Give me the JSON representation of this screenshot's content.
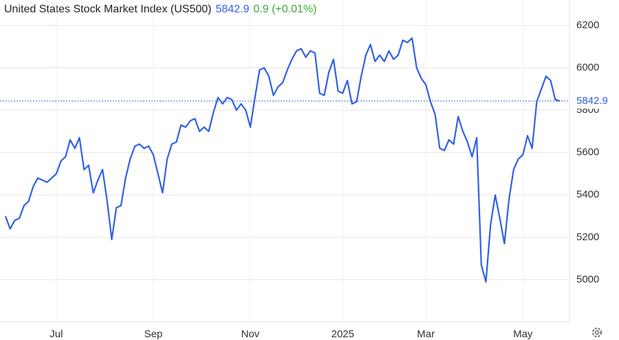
{
  "chart_data": {
    "type": "line",
    "title": "United States Stock Market Index (US500)",
    "last": 5842.9,
    "change_label": "0.9 (+0.01%)",
    "categories": [
      null,
      null,
      null,
      null,
      null,
      null,
      null,
      null,
      null,
      null,
      null,
      "Jul",
      null,
      null,
      null,
      null,
      null,
      null,
      null,
      null,
      null,
      null,
      null,
      null,
      null,
      null,
      null,
      null,
      null,
      null,
      null,
      null,
      "Sep",
      null,
      null,
      null,
      null,
      null,
      null,
      null,
      null,
      null,
      null,
      null,
      null,
      null,
      null,
      null,
      null,
      null,
      null,
      null,
      null,
      "Nov",
      null,
      null,
      null,
      null,
      null,
      null,
      null,
      null,
      null,
      null,
      null,
      null,
      null,
      null,
      null,
      null,
      null,
      null,
      null,
      "2025",
      null,
      null,
      null,
      null,
      null,
      null,
      null,
      null,
      null,
      null,
      null,
      null,
      null,
      null,
      null,
      null,
      null,
      "Mar",
      null,
      null,
      null,
      null,
      null,
      null,
      null,
      null,
      null,
      null,
      null,
      null,
      null,
      null,
      null,
      null,
      null,
      null,
      null,
      null,
      "May",
      null,
      null,
      null,
      null,
      null,
      null,
      null,
      null
    ],
    "series": [
      {
        "name": "US500",
        "color": "#2f5fe8",
        "values": [
          5300,
          5240,
          5280,
          5290,
          5350,
          5370,
          5440,
          5480,
          5470,
          5460,
          5480,
          5500,
          5560,
          5580,
          5660,
          5620,
          5670,
          5520,
          5540,
          5410,
          5470,
          5520,
          5370,
          5190,
          5340,
          5350,
          5480,
          5570,
          5630,
          5640,
          5620,
          5630,
          5590,
          5500,
          5410,
          5570,
          5640,
          5650,
          5730,
          5720,
          5750,
          5760,
          5700,
          5720,
          5700,
          5790,
          5860,
          5830,
          5860,
          5850,
          5800,
          5830,
          5800,
          5720,
          5860,
          5990,
          6000,
          5960,
          5870,
          5910,
          5930,
          5990,
          6040,
          6080,
          6090,
          6050,
          6080,
          6070,
          5880,
          5870,
          5980,
          6040,
          5890,
          5880,
          5940,
          5830,
          5840,
          5960,
          6060,
          6110,
          6030,
          6060,
          6030,
          6080,
          6040,
          6060,
          6130,
          6120,
          6140,
          6000,
          5950,
          5920,
          5840,
          5780,
          5620,
          5610,
          5660,
          5640,
          5770,
          5700,
          5650,
          5580,
          5670,
          5070,
          4990,
          5260,
          5400,
          5290,
          5170,
          5380,
          5520,
          5570,
          5590,
          5680,
          5620,
          5840,
          5900,
          5960,
          5940,
          5850,
          5842.9
        ]
      }
    ],
    "ylim": [
      4800,
      6320
    ],
    "yticks": [
      5000,
      5200,
      5400,
      5600,
      5800,
      6000,
      6200
    ],
    "grid": true
  }
}
